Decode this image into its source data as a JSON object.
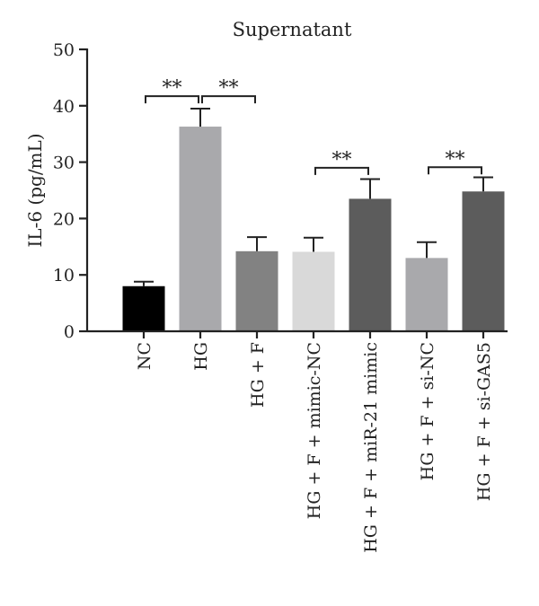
{
  "chart_data": {
    "type": "bar",
    "title": "Supernatant",
    "ylabel": "IL-6 (pg/mL)",
    "xlabel": "",
    "ylim": [
      0,
      50
    ],
    "yticks": [
      0,
      10,
      20,
      30,
      40,
      50
    ],
    "grid": false,
    "categories": [
      "NC",
      "HG",
      "HG + F",
      "HG + F + mimic-NC",
      "HG + F + miR-21 mimic",
      "HG + F + si-NC",
      "HG + F + si-GAS5"
    ],
    "values": [
      8,
      36.3,
      14.2,
      14.1,
      23.5,
      13,
      24.8
    ],
    "errors": [
      0.8,
      3.2,
      2.5,
      2.5,
      3.5,
      2.8,
      2.5
    ],
    "colors": [
      "#000000",
      "#a9a9ac",
      "#828282",
      "#d9d9d9",
      "#5c5c5c",
      "#a9a9ac",
      "#5c5c5c"
    ],
    "significance": [
      {
        "from": 0,
        "to": 1,
        "label": "**"
      },
      {
        "from": 1,
        "to": 2,
        "label": "**"
      },
      {
        "from": 3,
        "to": 4,
        "label": "**"
      },
      {
        "from": 5,
        "to": 6,
        "label": "**"
      }
    ]
  }
}
